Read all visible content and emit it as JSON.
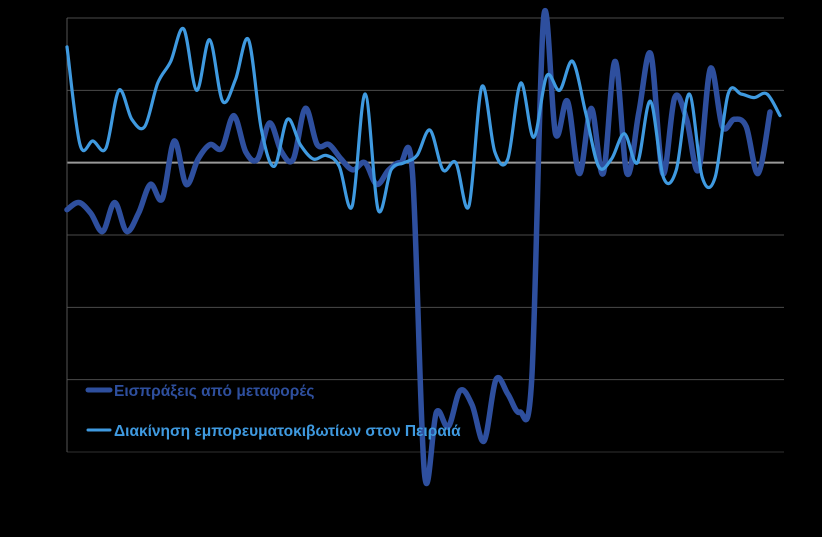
{
  "chart_data": {
    "type": "line",
    "title": "",
    "xlabel": "",
    "ylabel": "",
    "ylim": [
      -80,
      40
    ],
    "grid": true,
    "legend_position": "bottom-left",
    "background": "#000000",
    "gridline_color": "#888888",
    "zero_line_color": "#aaaaaa",
    "series": [
      {
        "name": "Εισπράξεις από μεταφορές",
        "color": "#2e4f9e",
        "values": [
          -13,
          -11,
          -14,
          -19,
          -11,
          -19,
          -14,
          -6,
          -10,
          6,
          -6,
          1,
          5,
          4,
          13,
          3,
          1,
          11,
          3,
          1,
          15,
          5,
          5,
          1,
          -2,
          0,
          -6,
          -2,
          0,
          -3,
          -86,
          -69,
          -73,
          -63,
          -67,
          -77,
          -60,
          -64,
          -69,
          -60,
          40,
          8,
          17,
          -3,
          15,
          -3,
          28,
          -3,
          14,
          30,
          -3,
          18,
          12,
          -2,
          26,
          10,
          12,
          10,
          -3,
          14
        ]
      },
      {
        "name": "Διακίνηση εμπορευματοκιβωτίων στον Πειραιά",
        "color": "#3f9ae0",
        "values": [
          32,
          5,
          6,
          4,
          20,
          12,
          10,
          22,
          28,
          37,
          20,
          34,
          17,
          23,
          34,
          9,
          -1,
          12,
          5,
          1,
          2,
          -1,
          -12,
          19,
          -13,
          -2,
          0,
          2,
          9,
          -2,
          0,
          -12,
          21,
          3,
          1,
          22,
          7,
          24,
          20,
          28,
          14,
          -1,
          1,
          8,
          0,
          17,
          -4,
          -2,
          19,
          -4,
          -4,
          19,
          19,
          18,
          19,
          13
        ]
      }
    ]
  }
}
